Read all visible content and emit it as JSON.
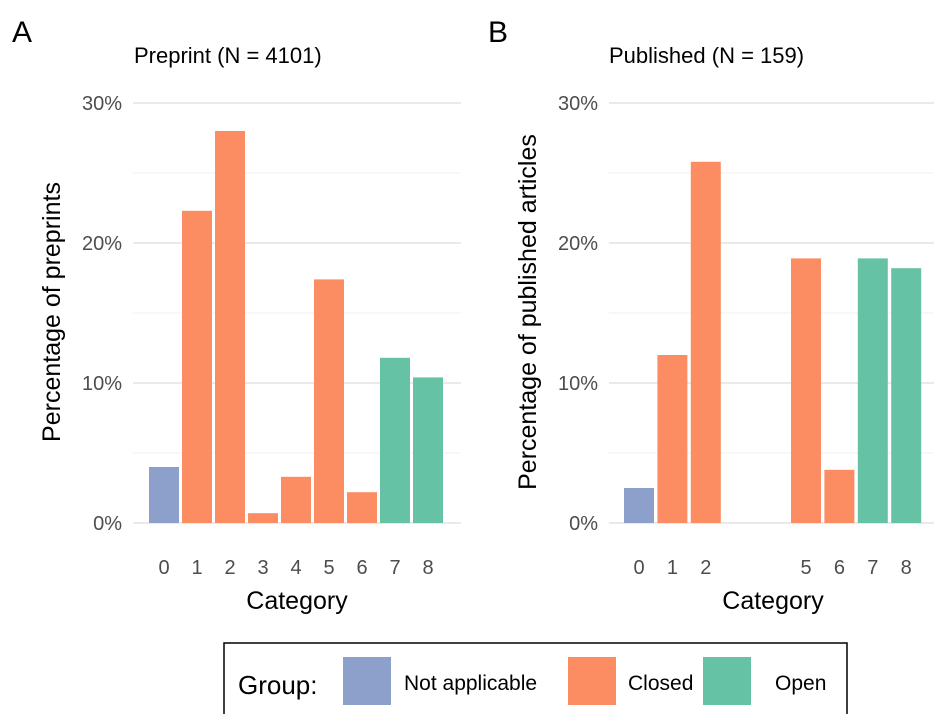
{
  "figure": {
    "legend": {
      "title": "Group:",
      "items": [
        {
          "label": "Not applicable",
          "color": "#8DA0CB"
        },
        {
          "label": "Closed",
          "color": "#FC8D62"
        },
        {
          "label": "Open",
          "color": "#66C2A5"
        }
      ],
      "placement": "bottom"
    }
  },
  "chart_data": [
    {
      "panel": "A",
      "type": "bar",
      "title": "Preprint (N = 4101)",
      "xlabel": "Category",
      "ylabel": "Percentage of preprints",
      "categories": [
        "0",
        "1",
        "2",
        "3",
        "4",
        "5",
        "6",
        "7",
        "8"
      ],
      "values": [
        4.0,
        22.3,
        28.0,
        0.7,
        3.3,
        17.4,
        2.2,
        11.8,
        10.4
      ],
      "groups": [
        "Not applicable",
        "Closed",
        "Closed",
        "Closed",
        "Closed",
        "Closed",
        "Closed",
        "Open",
        "Open"
      ],
      "ylim": [
        0,
        30
      ],
      "yticks": [
        {
          "v": 0,
          "label": "0%"
        },
        {
          "v": 10,
          "label": "10%"
        },
        {
          "v": 20,
          "label": "20%"
        },
        {
          "v": 30,
          "label": "30%"
        }
      ],
      "grid": true
    },
    {
      "panel": "B",
      "type": "bar",
      "title": "Published (N = 159)",
      "xlabel": "Category",
      "ylabel": "Percentage of published articles",
      "categories": [
        "0",
        "1",
        "2",
        "",
        "5",
        "6",
        "7",
        "8"
      ],
      "values": [
        2.5,
        12.0,
        25.8,
        null,
        18.9,
        3.8,
        18.9,
        18.2
      ],
      "groups": [
        "Not applicable",
        "Closed",
        "Closed",
        null,
        "Closed",
        "Closed",
        "Open",
        "Open"
      ],
      "ylim": [
        0,
        30
      ],
      "yticks": [
        {
          "v": 0,
          "label": "0%"
        },
        {
          "v": 10,
          "label": "10%"
        },
        {
          "v": 20,
          "label": "20%"
        },
        {
          "v": 30,
          "label": "30%"
        }
      ],
      "grid": true
    }
  ]
}
